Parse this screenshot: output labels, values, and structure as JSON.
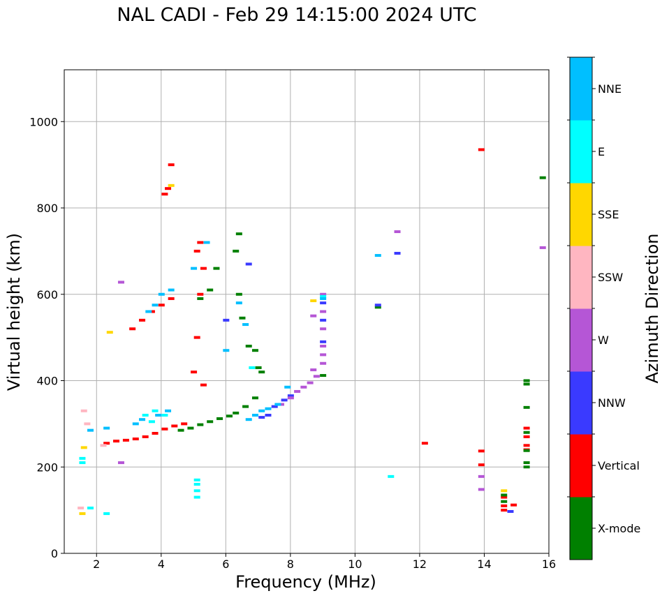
{
  "chart_data": {
    "type": "scatter",
    "title": "NAL CADI - Feb 29 14:15:00 2024 UTC",
    "xlabel": "Frequency (MHz)",
    "ylabel": "Virtual height (km)",
    "xlim": [
      1,
      16
    ],
    "ylim": [
      0,
      1120
    ],
    "xticks": [
      2,
      4,
      6,
      8,
      10,
      12,
      14,
      16
    ],
    "yticks": [
      0,
      200,
      400,
      600,
      800,
      1000
    ],
    "grid": true,
    "colorbar": {
      "label": "Azimuth Direction",
      "categories": [
        {
          "name": "X-mode",
          "color": "#008000"
        },
        {
          "name": "Vertical",
          "color": "#ff0000"
        },
        {
          "name": "NNW",
          "color": "#3a3aff"
        },
        {
          "name": "W",
          "color": "#b556d6"
        },
        {
          "name": "SSW",
          "color": "#ffb6c1"
        },
        {
          "name": "SSE",
          "color": "#ffd700"
        },
        {
          "name": "E",
          "color": "#00ffff"
        },
        {
          "name": "NNE",
          "color": "#00bfff"
        }
      ]
    },
    "series": [
      {
        "name": "Vertical",
        "color": "#ff0000",
        "points": [
          [
            2.3,
            255
          ],
          [
            2.6,
            260
          ],
          [
            2.9,
            262
          ],
          [
            3.2,
            265
          ],
          [
            3.5,
            270
          ],
          [
            3.8,
            278
          ],
          [
            4.1,
            288
          ],
          [
            4.4,
            295
          ],
          [
            4.7,
            300
          ],
          [
            3.1,
            520
          ],
          [
            3.4,
            540
          ],
          [
            3.7,
            560
          ],
          [
            4.0,
            575
          ],
          [
            4.3,
            590
          ],
          [
            4.2,
            845
          ],
          [
            4.1,
            832
          ],
          [
            4.3,
            900
          ],
          [
            5.2,
            720
          ],
          [
            5.1,
            700
          ],
          [
            5.3,
            660
          ],
          [
            5.2,
            600
          ],
          [
            5.1,
            500
          ],
          [
            5.0,
            420
          ],
          [
            5.3,
            390
          ],
          [
            12.15,
            255
          ],
          [
            13.9,
            935
          ],
          [
            13.9,
            237
          ],
          [
            13.9,
            205
          ],
          [
            14.6,
            130
          ],
          [
            14.6,
            110
          ],
          [
            14.6,
            100
          ],
          [
            14.9,
            112
          ],
          [
            15.3,
            290
          ],
          [
            15.3,
            270
          ],
          [
            15.3,
            250
          ],
          [
            15.3,
            240
          ]
        ]
      },
      {
        "name": "X-mode",
        "color": "#008000",
        "points": [
          [
            4.6,
            285
          ],
          [
            4.9,
            290
          ],
          [
            5.2,
            298
          ],
          [
            5.5,
            305
          ],
          [
            5.8,
            312
          ],
          [
            6.1,
            318
          ],
          [
            6.3,
            325
          ],
          [
            6.6,
            340
          ],
          [
            6.9,
            360
          ],
          [
            6.4,
            740
          ],
          [
            6.3,
            700
          ],
          [
            6.4,
            600
          ],
          [
            6.5,
            545
          ],
          [
            6.7,
            480
          ],
          [
            6.9,
            470
          ],
          [
            7.0,
            430
          ],
          [
            7.1,
            420
          ],
          [
            5.2,
            590
          ],
          [
            5.5,
            610
          ],
          [
            5.7,
            660
          ],
          [
            14.6,
            135
          ],
          [
            14.6,
            120
          ],
          [
            15.3,
            400
          ],
          [
            15.3,
            392
          ],
          [
            15.3,
            338
          ],
          [
            15.3,
            280
          ],
          [
            15.3,
            238
          ],
          [
            15.3,
            210
          ],
          [
            15.3,
            200
          ],
          [
            15.8,
            870
          ],
          [
            9.0,
            412
          ],
          [
            10.7,
            570
          ]
        ]
      },
      {
        "name": "NNW",
        "color": "#3a3aff",
        "points": [
          [
            7.1,
            315
          ],
          [
            7.3,
            320
          ],
          [
            7.5,
            340
          ],
          [
            7.8,
            355
          ],
          [
            8.0,
            365
          ],
          [
            9.0,
            580
          ],
          [
            9.0,
            540
          ],
          [
            9.0,
            490
          ],
          [
            11.3,
            695
          ],
          [
            10.7,
            575
          ],
          [
            14.8,
            97
          ],
          [
            6.7,
            670
          ],
          [
            6.0,
            540
          ]
        ]
      },
      {
        "name": "W",
        "color": "#b556d6",
        "points": [
          [
            7.7,
            345
          ],
          [
            8.0,
            360
          ],
          [
            8.2,
            375
          ],
          [
            8.4,
            385
          ],
          [
            8.6,
            395
          ],
          [
            8.8,
            410
          ],
          [
            8.7,
            425
          ],
          [
            9.0,
            440
          ],
          [
            9.0,
            600
          ],
          [
            9.0,
            560
          ],
          [
            9.0,
            520
          ],
          [
            9.0,
            480
          ],
          [
            9.0,
            460
          ],
          [
            8.7,
            550
          ],
          [
            11.3,
            745
          ],
          [
            15.8,
            708
          ],
          [
            13.9,
            178
          ],
          [
            13.9,
            148
          ],
          [
            2.75,
            628
          ],
          [
            2.75,
            210
          ]
        ]
      },
      {
        "name": "SSW",
        "color": "#ffb6c1",
        "points": [
          [
            1.6,
            330
          ],
          [
            1.7,
            300
          ],
          [
            2.2,
            250
          ],
          [
            1.5,
            105
          ]
        ]
      },
      {
        "name": "SSE",
        "color": "#ffd700",
        "points": [
          [
            2.4,
            512
          ],
          [
            4.3,
            852
          ],
          [
            8.7,
            585
          ],
          [
            14.6,
            145
          ],
          [
            1.6,
            245
          ],
          [
            1.55,
            92
          ]
        ]
      },
      {
        "name": "E",
        "color": "#00ffff",
        "points": [
          [
            3.5,
            320
          ],
          [
            3.8,
            330
          ],
          [
            3.7,
            305
          ],
          [
            4.1,
            320
          ],
          [
            5.1,
            130
          ],
          [
            5.1,
            145
          ],
          [
            5.1,
            160
          ],
          [
            5.1,
            170
          ],
          [
            11.1,
            178
          ],
          [
            2.3,
            92
          ],
          [
            1.55,
            210
          ],
          [
            1.55,
            220
          ],
          [
            1.8,
            105
          ],
          [
            9.0,
            595
          ],
          [
            6.8,
            430
          ]
        ]
      },
      {
        "name": "NNE",
        "color": "#00bfff",
        "points": [
          [
            3.2,
            300
          ],
          [
            3.4,
            310
          ],
          [
            3.9,
            320
          ],
          [
            4.2,
            330
          ],
          [
            3.6,
            560
          ],
          [
            3.8,
            575
          ],
          [
            4.0,
            600
          ],
          [
            4.3,
            610
          ],
          [
            6.7,
            310
          ],
          [
            6.9,
            320
          ],
          [
            7.1,
            330
          ],
          [
            7.3,
            335
          ],
          [
            7.6,
            345
          ],
          [
            7.9,
            385
          ],
          [
            6.6,
            530
          ],
          [
            6.4,
            580
          ],
          [
            5.0,
            660
          ],
          [
            5.4,
            720
          ],
          [
            6.0,
            470
          ],
          [
            10.7,
            690
          ],
          [
            1.8,
            285
          ],
          [
            2.3,
            290
          ],
          [
            9.0,
            590
          ]
        ]
      }
    ]
  }
}
